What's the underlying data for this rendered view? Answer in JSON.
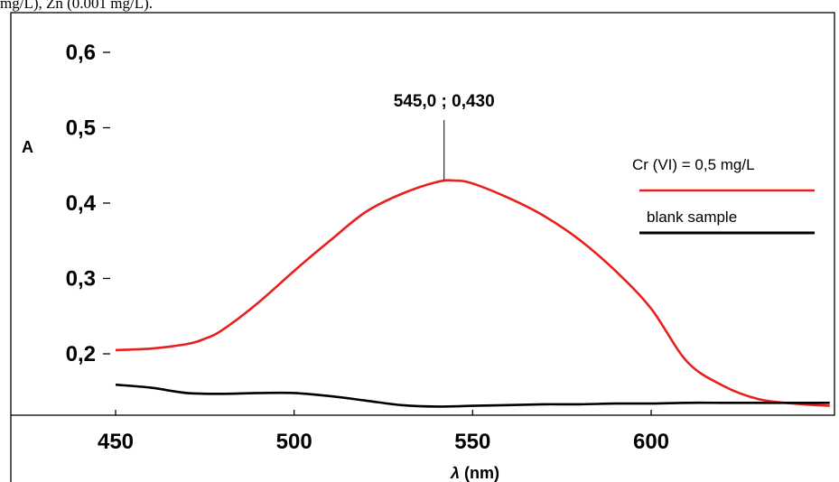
{
  "caption": "mg/L), Zn (0.001 mg/L).",
  "chart_data": {
    "type": "line",
    "title": "",
    "xlabel": "λ (nm)",
    "ylabel": "A",
    "xlim": [
      450,
      650
    ],
    "ylim": [
      0.13,
      0.65
    ],
    "x_ticks": [
      "450",
      "500",
      "550",
      "600"
    ],
    "y_ticks": [
      "0,2",
      "0,3",
      "0,4",
      "0,5",
      "0,6"
    ],
    "grid": false,
    "legend_position": "right",
    "annotation": "545,0 ; 0,430",
    "annotation_point": [
      542,
      0.43
    ],
    "series": [
      {
        "name": "Cr (VI) = 0,5 mg/L",
        "color": "#e8201c",
        "x": [
          450,
          460,
          470,
          475,
          480,
          490,
          500,
          510,
          520,
          530,
          540,
          545,
          550,
          560,
          570,
          580,
          590,
          600,
          610,
          620,
          630,
          640,
          650
        ],
        "y": [
          0.205,
          0.207,
          0.213,
          0.22,
          0.232,
          0.268,
          0.31,
          0.35,
          0.388,
          0.412,
          0.428,
          0.43,
          0.426,
          0.407,
          0.383,
          0.351,
          0.31,
          0.26,
          0.19,
          0.158,
          0.14,
          0.134,
          0.131
        ]
      },
      {
        "name": "blank sample",
        "color": "#000000",
        "x": [
          450,
          460,
          470,
          480,
          490,
          500,
          510,
          520,
          530,
          540,
          550,
          560,
          570,
          580,
          590,
          600,
          610,
          620,
          630,
          640,
          650
        ],
        "y": [
          0.159,
          0.155,
          0.148,
          0.147,
          0.148,
          0.148,
          0.144,
          0.138,
          0.132,
          0.13,
          0.131,
          0.132,
          0.133,
          0.133,
          0.134,
          0.134,
          0.135,
          0.135,
          0.135,
          0.135,
          0.135
        ]
      }
    ]
  }
}
